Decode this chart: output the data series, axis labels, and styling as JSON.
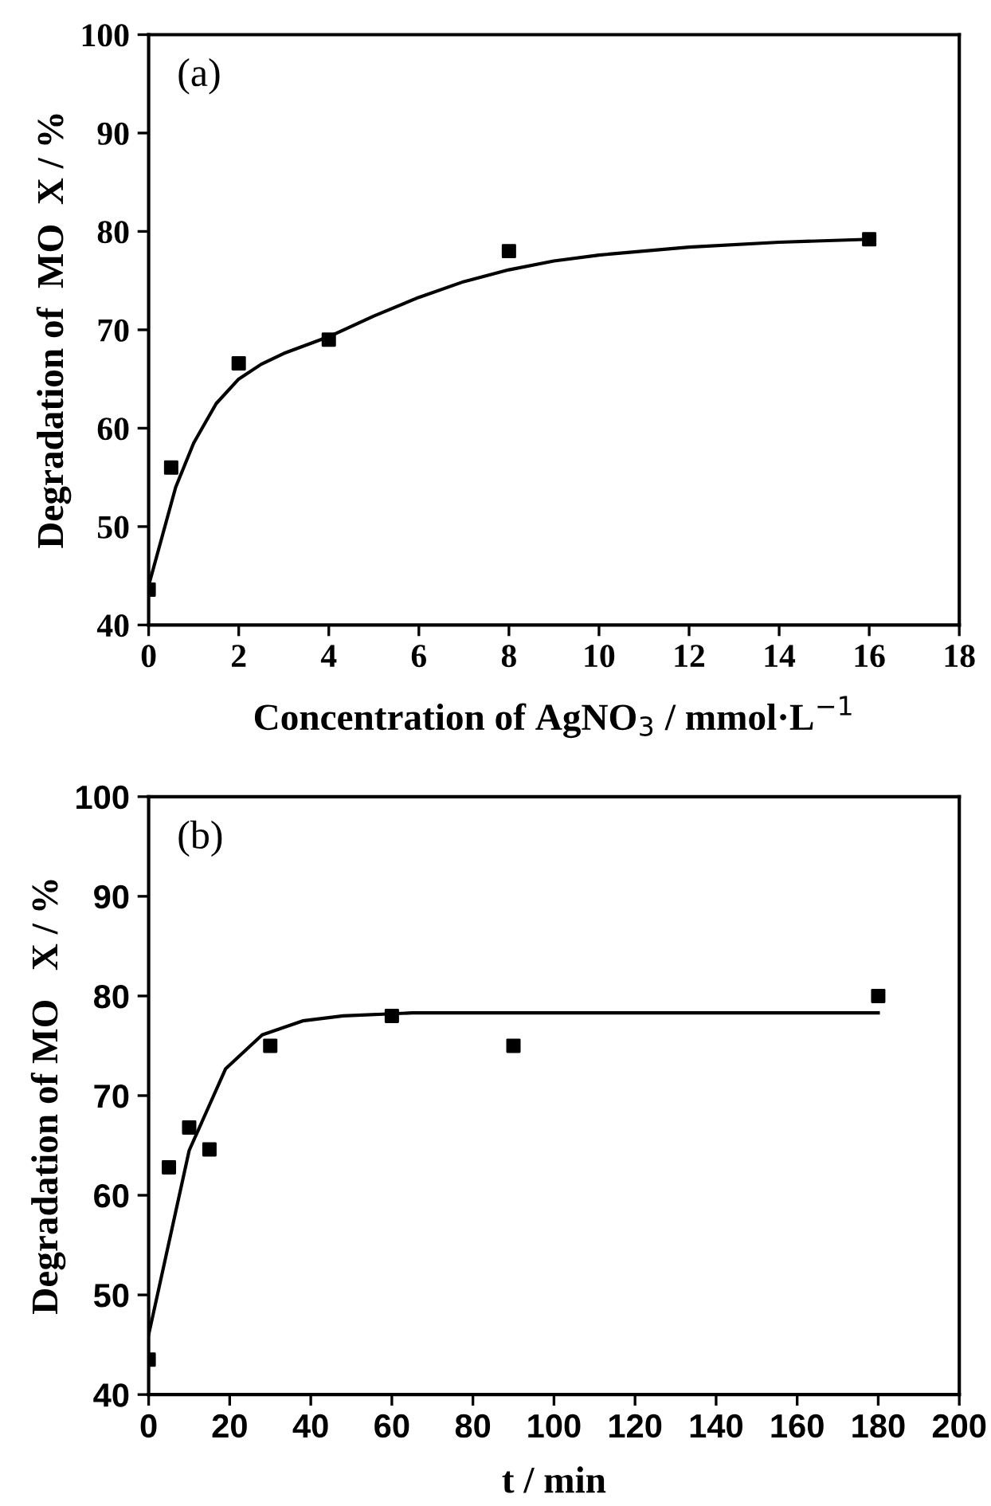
{
  "chart_data": [
    {
      "type": "scatter",
      "xlabel": "Concentration of AgNO$_{3}$ / mmol·L$^{−1}$",
      "ylabel": "Degradation of  MO  X / %",
      "annotations": [
        "(a)"
      ],
      "series": [
        {
          "color": "#000000",
          "marker": "square",
          "x": [
            0,
            0.5,
            2,
            4,
            8,
            16
          ],
          "values": [
            43.6,
            56,
            66.6,
            69,
            78,
            79.2
          ]
        },
        {
          "type": "line",
          "color": "#000000",
          "marker": "none",
          "line_style": "solid",
          "x": [
            0,
            0.3,
            0.6,
            1,
            1.5,
            2,
            2.5,
            3,
            4,
            5,
            6,
            7,
            8,
            9,
            10,
            12,
            14,
            16
          ],
          "values": [
            44,
            49,
            54,
            58.5,
            62.5,
            65,
            66.5,
            67.6,
            69.3,
            71.4,
            73.3,
            74.9,
            76.1,
            77,
            77.6,
            78.4,
            78.9,
            79.2
          ]
        }
      ],
      "xlim": [
        0,
        18
      ],
      "xticks": [
        0,
        2,
        4,
        6,
        8,
        10,
        12,
        14,
        16,
        18
      ],
      "ylim": [
        40,
        100
      ],
      "yticks": [
        40,
        50,
        60,
        70,
        80,
        90,
        100
      ],
      "grid": false,
      "legend": false
    },
    {
      "type": "scatter",
      "xlabel": "t / min",
      "ylabel": "Degradation of MO   X / %",
      "annotations": [
        "(b)"
      ],
      "series": [
        {
          "color": "#000000",
          "marker": "square",
          "x": [
            0,
            5,
            10,
            15,
            30,
            60,
            90,
            180
          ],
          "values": [
            43.5,
            62.8,
            66.8,
            64.6,
            75,
            78,
            75,
            80
          ]
        },
        {
          "type": "line",
          "color": "#000000",
          "marker": "none",
          "line_style": "solid",
          "x": [
            0,
            10,
            19,
            28,
            38,
            48,
            65,
            100,
            180
          ],
          "values": [
            46,
            64.5,
            72.7,
            76.1,
            77.5,
            78,
            78.3,
            78.3,
            78.3
          ]
        }
      ],
      "xlim": [
        0,
        200
      ],
      "xticks": [
        0,
        20,
        40,
        60,
        80,
        100,
        120,
        140,
        160,
        180,
        200
      ],
      "ylim": [
        40,
        100
      ],
      "yticks": [
        40,
        50,
        60,
        70,
        80,
        90,
        100
      ],
      "grid": false,
      "legend": false
    }
  ]
}
